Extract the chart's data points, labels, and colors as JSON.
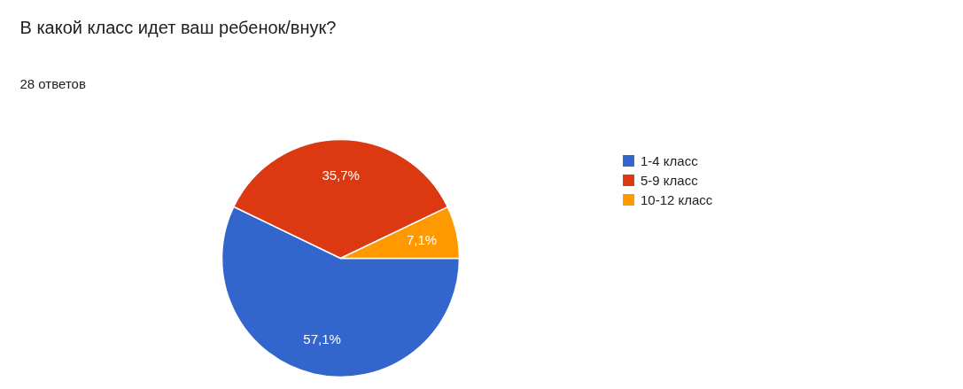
{
  "chart_data": {
    "type": "pie",
    "title": "В какой класс идет ваш ребенок/внук?",
    "subtitle": "28 ответов",
    "categories": [
      "1-4 класс",
      "5-9 класс",
      "10-12 класс"
    ],
    "values": [
      57.1,
      35.7,
      7.1
    ],
    "colors": [
      "#3366cc",
      "#dc3912",
      "#ff9900"
    ],
    "value_labels": [
      "57,1%",
      "35,7%",
      "7,1%"
    ],
    "legend": "right"
  }
}
